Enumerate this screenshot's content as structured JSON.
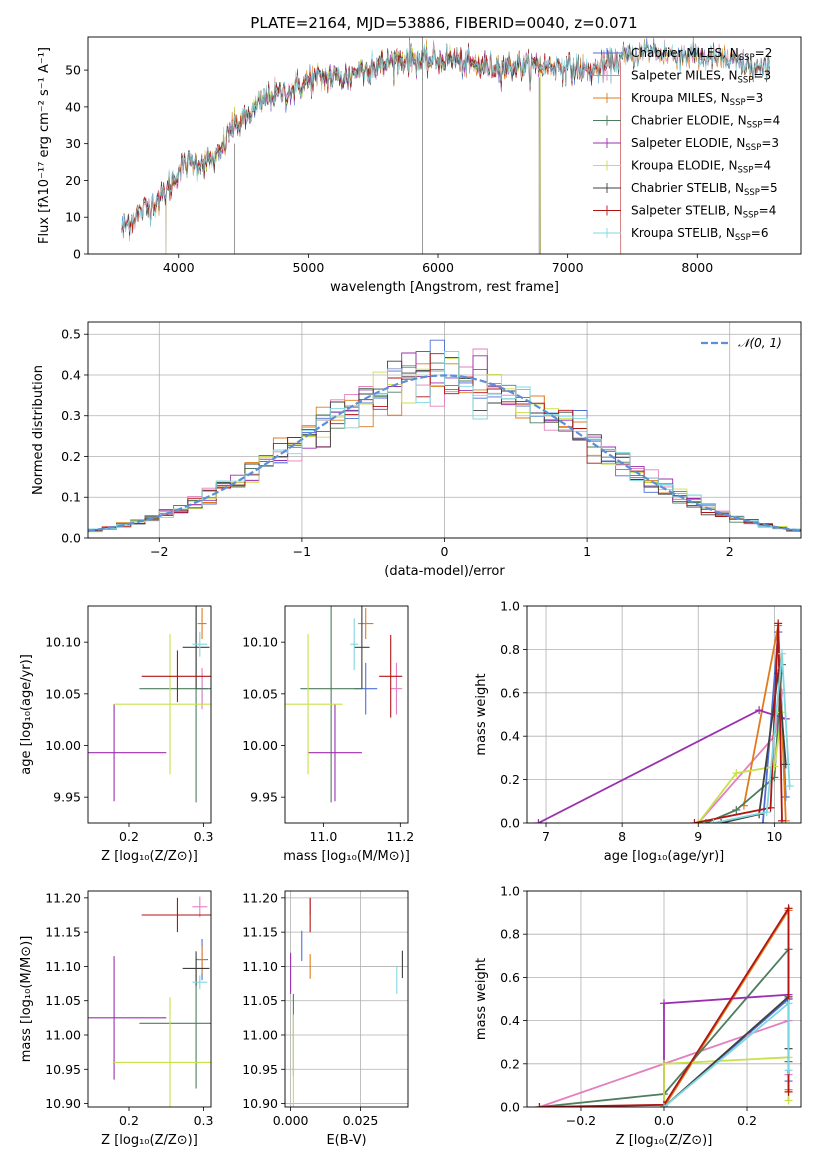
{
  "colors": {
    "Chabrier MILES": "#4e6fd8",
    "Salpeter MILES": "#e47fbf",
    "Kroupa MILES": "#e07b1a",
    "Chabrier ELODIE": "#4e7d5e",
    "Salpeter ELODIE": "#9b2fb0",
    "Kroupa ELODIE": "#c8e04a",
    "Chabrier STELIB": "#404040",
    "Salpeter STELIB": "#b01515",
    "Kroupa STELIB": "#7fd8e0",
    "normal": "#5b8fd6"
  },
  "chart_data": [
    {
      "id": "spectrum",
      "type": "line",
      "title": "PLATE=2164, MJD=53886, FIBERID=0040, z=0.071",
      "xlabel": "wavelength [Angstrom, rest frame]",
      "ylabel": "Flux [fλ10⁻¹⁷ erg cm⁻² s⁻¹ A⁻¹]",
      "xlim": [
        3300,
        8800
      ],
      "ylim": [
        0,
        59
      ],
      "xticks": [
        4000,
        5000,
        6000,
        7000,
        8000
      ],
      "yticks": [
        0,
        10,
        20,
        30,
        40,
        50
      ],
      "grid": false,
      "legend_position": "top-right",
      "series": [
        {
          "name": "Chabrier MILES",
          "nssp": "2",
          "start": 3560,
          "end": 8560
        },
        {
          "name": "Salpeter MILES",
          "nssp": "3",
          "start": 3560,
          "end": 8560
        },
        {
          "name": "Kroupa MILES",
          "nssp": "3",
          "start": 3560,
          "end": 8560
        },
        {
          "name": "Chabrier ELODIE",
          "nssp": "4",
          "start": 3900,
          "end": 6790
        },
        {
          "name": "Salpeter ELODIE",
          "nssp": "3",
          "start": 3900,
          "end": 6790
        },
        {
          "name": "Kroupa ELODIE",
          "nssp": "4",
          "start": 3900,
          "end": 6790
        },
        {
          "name": "Chabrier STELIB",
          "nssp": "5",
          "start": 3560,
          "end": 8560
        },
        {
          "name": "Salpeter STELIB",
          "nssp": "4",
          "start": 3560,
          "end": 7410
        },
        {
          "name": "Kroupa STELIB",
          "nssp": "6",
          "start": 3560,
          "end": 8560
        }
      ],
      "continuum": {
        "x": [
          3560,
          3700,
          3800,
          3900,
          3950,
          4000,
          4100,
          4200,
          4300,
          4400,
          4500,
          4600,
          4700,
          4800,
          4900,
          5000,
          5100,
          5200,
          5300,
          5400,
          5500,
          5600,
          5700,
          5800,
          5900,
          6000,
          6100,
          6200,
          6300,
          6400,
          6500,
          6600,
          6700,
          6800,
          6900,
          7000,
          7100,
          7200,
          7300,
          7400,
          7500,
          7600,
          7700,
          7800,
          7900,
          8000,
          8100,
          8200,
          8300,
          8400,
          8500,
          8560
        ],
        "y": [
          7,
          11,
          14,
          17,
          19,
          23,
          25,
          25,
          26,
          34,
          36,
          40,
          43,
          44,
          45,
          47,
          48,
          48,
          48,
          50,
          51,
          52,
          53,
          53,
          52,
          53,
          53,
          52,
          51,
          51,
          51,
          51,
          51,
          51,
          51,
          51,
          50,
          50,
          51,
          53,
          54,
          55,
          55,
          54,
          54,
          54,
          53,
          53,
          52,
          51,
          50,
          50
        ]
      }
    },
    {
      "id": "histogram",
      "type": "bar",
      "xlabel": "(data-model)/error",
      "ylabel": "Normed distribution",
      "xlim": [
        -2.5,
        2.5
      ],
      "ylim": [
        0,
        0.53
      ],
      "xticks": [
        -2,
        -1,
        0,
        1,
        2
      ],
      "yticks": [
        0.0,
        0.1,
        0.2,
        0.3,
        0.4,
        0.5
      ],
      "grid": true,
      "legend_position": "top-right",
      "legend_label": "𝒩(0, 1)",
      "bins": 50
    },
    {
      "id": "age-vs-Z",
      "type": "scatter",
      "xlabel": "Z [log₁₀(Z/Z⊙)]",
      "ylabel": "age  [log₁₀(age/yr)]",
      "xlim": [
        0.145,
        0.31
      ],
      "ylim": [
        9.925,
        10.135
      ],
      "xticks": [
        0.2,
        0.3
      ],
      "yticks": [
        9.95,
        10.0,
        10.05,
        10.1
      ],
      "grid": false,
      "points": [
        {
          "series": "Chabrier MILES",
          "x": 0.298,
          "xerr": 0.008,
          "y": 10.055,
          "yerr": 0.015
        },
        {
          "series": "Salpeter MILES",
          "x": 0.298,
          "xerr": 0.006,
          "y": 10.055,
          "yerr": 0.02
        },
        {
          "series": "Kroupa MILES",
          "x": 0.298,
          "xerr": 0.006,
          "y": 10.118,
          "yerr": 0.015
        },
        {
          "series": "Chabrier ELODIE",
          "x": 0.29,
          "xerr": 0.076,
          "y": 10.055,
          "yerr": 0.11
        },
        {
          "series": "Salpeter ELODIE",
          "x": 0.18,
          "xerr": 0.07,
          "y": 9.993,
          "yerr": 0.047
        },
        {
          "series": "Kroupa ELODIE",
          "x": 0.255,
          "xerr": 0.075,
          "y": 10.04,
          "yerr": 0.068
        },
        {
          "series": "Chabrier STELIB",
          "x": 0.29,
          "xerr": 0.018,
          "y": 10.095,
          "yerr": 0.04
        },
        {
          "series": "Salpeter STELIB",
          "x": 0.265,
          "xerr": 0.048,
          "y": 10.067,
          "yerr": 0.025
        },
        {
          "series": "Kroupa STELIB",
          "x": 0.295,
          "xerr": 0.01,
          "y": 10.098,
          "yerr": 0.012
        }
      ]
    },
    {
      "id": "age-vs-mass",
      "type": "scatter",
      "xlabel": "mass [log₁₀(M/M⊙)]",
      "ylabel": "",
      "xlim": [
        10.9,
        11.22
      ],
      "ylim": [
        9.925,
        10.135
      ],
      "xticks": [
        11.0,
        11.2
      ],
      "yticks": [
        9.95,
        10.0,
        10.05,
        10.1
      ],
      "grid": false,
      "points": [
        {
          "series": "Chabrier MILES",
          "x": 11.11,
          "xerr": 0.03,
          "y": 10.055,
          "yerr": 0.025
        },
        {
          "series": "Salpeter MILES",
          "x": 11.19,
          "xerr": 0.015,
          "y": 10.055,
          "yerr": 0.025
        },
        {
          "series": "Kroupa MILES",
          "x": 11.11,
          "xerr": 0.02,
          "y": 10.118,
          "yerr": 0.015
        },
        {
          "series": "Chabrier ELODIE",
          "x": 11.02,
          "xerr": 0.08,
          "y": 10.055,
          "yerr": 0.11
        },
        {
          "series": "Salpeter ELODIE",
          "x": 11.03,
          "xerr": 0.07,
          "y": 9.993,
          "yerr": 0.047
        },
        {
          "series": "Kroupa ELODIE",
          "x": 10.96,
          "xerr": 0.09,
          "y": 10.04,
          "yerr": 0.068
        },
        {
          "series": "Chabrier STELIB",
          "x": 11.1,
          "xerr": 0.02,
          "y": 10.095,
          "yerr": 0.04
        },
        {
          "series": "Salpeter STELIB",
          "x": 11.175,
          "xerr": 0.03,
          "y": 10.067,
          "yerr": 0.04
        },
        {
          "series": "Kroupa STELIB",
          "x": 11.08,
          "xerr": 0.01,
          "y": 10.098,
          "yerr": 0.025
        }
      ]
    },
    {
      "id": "mass-weight-vs-age",
      "type": "line",
      "xlabel": "age  [log₁₀(age/yr)]",
      "ylabel": "mass weight",
      "xlim": [
        6.75,
        10.35
      ],
      "ylim": [
        0,
        1
      ],
      "xticks": [
        7,
        8,
        9,
        10
      ],
      "yticks": [
        0.0,
        0.2,
        0.4,
        0.6,
        0.8,
        1.0
      ],
      "grid": true,
      "series": [
        {
          "name": "Chabrier MILES",
          "x": [
            9.85,
            10.05,
            10.15
          ],
          "y": [
            0.0,
            0.88,
            0.12
          ]
        },
        {
          "name": "Salpeter MILES",
          "x": [
            9.0,
            10.0,
            10.1
          ],
          "y": [
            0.0,
            0.4,
            0.6
          ]
        },
        {
          "name": "Kroupa MILES",
          "x": [
            9.6,
            10.05,
            10.15
          ],
          "y": [
            0.08,
            0.91,
            0.01
          ]
        },
        {
          "name": "Chabrier ELODIE",
          "x": [
            9.1,
            9.5,
            10.0,
            10.1
          ],
          "y": [
            0.0,
            0.06,
            0.21,
            0.73
          ]
        },
        {
          "name": "Salpeter ELODIE",
          "x": [
            6.9,
            9.8,
            10.15
          ],
          "y": [
            0.0,
            0.52,
            0.48
          ]
        },
        {
          "name": "Kroupa ELODIE",
          "x": [
            9.0,
            9.5,
            10.0,
            10.1
          ],
          "y": [
            0.0,
            0.23,
            0.26,
            0.51
          ]
        },
        {
          "name": "Chabrier STELIB",
          "x": [
            9.3,
            9.8,
            10.05,
            10.15
          ],
          "y": [
            0.0,
            0.04,
            0.69,
            0.27
          ]
        },
        {
          "name": "Salpeter STELIB",
          "x": [
            8.95,
            9.95,
            10.05,
            10.1
          ],
          "y": [
            0.0,
            0.07,
            0.92,
            0.01
          ]
        },
        {
          "name": "Kroupa STELIB",
          "x": [
            9.2,
            9.9,
            10.1,
            10.2
          ],
          "y": [
            0.0,
            0.05,
            0.78,
            0.17
          ]
        }
      ]
    },
    {
      "id": "mass-vs-Z",
      "type": "scatter",
      "xlabel": "Z [log₁₀(Z/Z⊙)]",
      "ylabel": "mass [log₁₀(M/M⊙)]",
      "xlim": [
        0.145,
        0.31
      ],
      "ylim": [
        10.895,
        11.21
      ],
      "xticks": [
        0.2,
        0.3
      ],
      "yticks": [
        10.9,
        10.95,
        11.0,
        11.05,
        11.1,
        11.15,
        11.2
      ],
      "grid": false,
      "points": [
        {
          "series": "Chabrier MILES",
          "x": 0.298,
          "xerr": 0.008,
          "y": 11.11,
          "yerr": 0.03
        },
        {
          "series": "Salpeter MILES",
          "x": 0.295,
          "xerr": 0.01,
          "y": 11.187,
          "yerr": 0.015
        },
        {
          "series": "Kroupa MILES",
          "x": 0.298,
          "xerr": 0.006,
          "y": 11.11,
          "yerr": 0.02
        },
        {
          "series": "Chabrier ELODIE",
          "x": 0.29,
          "xerr": 0.076,
          "y": 11.017,
          "yerr": 0.095
        },
        {
          "series": "Salpeter ELODIE",
          "x": 0.18,
          "xerr": 0.07,
          "y": 11.025,
          "yerr": 0.09
        },
        {
          "series": "Kroupa ELODIE",
          "x": 0.255,
          "xerr": 0.075,
          "y": 10.96,
          "yerr": 0.095
        },
        {
          "series": "Chabrier STELIB",
          "x": 0.29,
          "xerr": 0.018,
          "y": 11.097,
          "yerr": 0.025
        },
        {
          "series": "Salpeter STELIB",
          "x": 0.265,
          "xerr": 0.048,
          "y": 11.175,
          "yerr": 0.025
        },
        {
          "series": "Kroupa STELIB",
          "x": 0.295,
          "xerr": 0.01,
          "y": 11.077,
          "yerr": 0.01
        }
      ]
    },
    {
      "id": "mass-vs-ebv",
      "type": "scatter",
      "xlabel": "E(B-V)",
      "ylabel": "",
      "xlim": [
        -0.002,
        0.042
      ],
      "ylim": [
        10.895,
        11.21
      ],
      "xticks": [
        0.0,
        0.025
      ],
      "yticks": [
        10.9,
        10.95,
        11.0,
        11.05,
        11.1,
        11.15,
        11.2
      ],
      "grid": true,
      "points": [
        {
          "series": "Chabrier MILES",
          "x": 0.004,
          "xerr": 0.0,
          "y": 11.13,
          "yerr": 0.022
        },
        {
          "series": "Salpeter MILES",
          "x": 0.007,
          "xerr": 0.0,
          "y": 11.188,
          "yerr": 0.012
        },
        {
          "series": "Kroupa MILES",
          "x": 0.007,
          "xerr": 0.0,
          "y": 11.1,
          "yerr": 0.018
        },
        {
          "series": "Chabrier ELODIE",
          "x": 0.001,
          "xerr": 0.0,
          "y": 11.0,
          "yerr": 0.06
        },
        {
          "series": "Salpeter ELODIE",
          "x": 0.0,
          "xerr": 0.0,
          "y": 11.09,
          "yerr": 0.03
        },
        {
          "series": "Kroupa ELODIE",
          "x": 0.001,
          "xerr": 0.0,
          "y": 10.96,
          "yerr": 0.07
        },
        {
          "series": "Chabrier STELIB",
          "x": 0.04,
          "xerr": 0.0,
          "y": 11.103,
          "yerr": 0.02
        },
        {
          "series": "Salpeter STELIB",
          "x": 0.007,
          "xerr": 0.0,
          "y": 11.175,
          "yerr": 0.025
        },
        {
          "series": "Kroupa STELIB",
          "x": 0.038,
          "xerr": 0.0,
          "y": 11.08,
          "yerr": 0.02
        }
      ]
    },
    {
      "id": "mass-weight-vs-Z",
      "type": "line",
      "xlabel": "Z [log₁₀(Z/Z⊙)]",
      "ylabel": "mass weight",
      "xlim": [
        -0.33,
        0.33
      ],
      "ylim": [
        0,
        1
      ],
      "xticks": [
        -0.2,
        0.0,
        0.2
      ],
      "yticks": [
        0.0,
        0.2,
        0.4,
        0.6,
        0.8,
        1.0
      ],
      "grid": true,
      "series": [
        {
          "name": "Chabrier MILES",
          "x": [
            0.0,
            0.3,
            0.3
          ],
          "y": [
            0.0,
            0.5,
            0.12
          ]
        },
        {
          "name": "Salpeter MILES",
          "x": [
            -0.3,
            0.3,
            0.3
          ],
          "y": [
            0.0,
            0.4,
            0.15
          ]
        },
        {
          "name": "Kroupa MILES",
          "x": [
            0.0,
            0.3,
            0.3
          ],
          "y": [
            0.0,
            0.91,
            0.08
          ]
        },
        {
          "name": "Chabrier ELODIE",
          "x": [
            -0.3,
            0.0,
            0.3,
            0.3
          ],
          "y": [
            0.0,
            0.06,
            0.73,
            0.21
          ]
        },
        {
          "name": "Salpeter ELODIE",
          "x": [
            0.0,
            0.0,
            0.3,
            0.3
          ],
          "y": [
            0.0,
            0.48,
            0.52,
            0.5
          ]
        },
        {
          "name": "Kroupa ELODIE",
          "x": [
            0.0,
            0.0,
            0.3,
            0.3
          ],
          "y": [
            0.0,
            0.2,
            0.23,
            0.03
          ]
        },
        {
          "name": "Chabrier STELIB",
          "x": [
            0.0,
            0.3,
            0.3
          ],
          "y": [
            0.0,
            0.51,
            0.27
          ]
        },
        {
          "name": "Salpeter STELIB",
          "x": [
            -0.3,
            0.0,
            0.3,
            0.3
          ],
          "y": [
            0.0,
            0.01,
            0.92,
            0.07
          ]
        },
        {
          "name": "Kroupa STELIB",
          "x": [
            0.0,
            0.3,
            0.3
          ],
          "y": [
            0.0,
            0.48,
            0.17
          ]
        }
      ]
    }
  ]
}
